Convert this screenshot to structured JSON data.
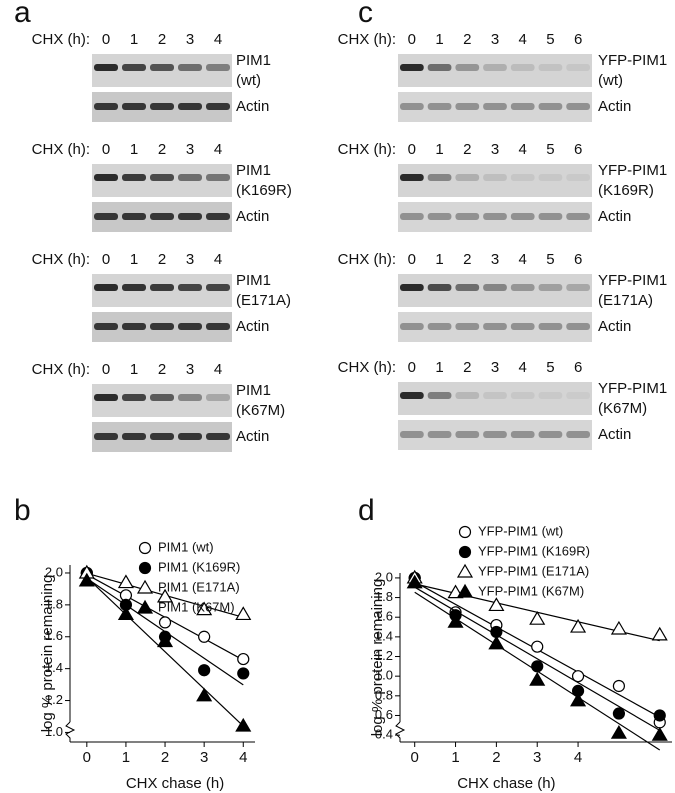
{
  "blots": [
    {
      "letter": "a",
      "blocks": [
        {
          "chx_label": "CHX (h):",
          "lanes": [
            0,
            1,
            2,
            3,
            4
          ],
          "protein": [
            "PIM1",
            "(wt)"
          ],
          "loading": "Actin"
        },
        {
          "chx_label": "CHX (h):",
          "lanes": [
            0,
            1,
            2,
            3,
            4
          ],
          "protein": [
            "PIM1",
            "(K169R)"
          ],
          "loading": "Actin"
        },
        {
          "chx_label": "CHX (h):",
          "lanes": [
            0,
            1,
            2,
            3,
            4
          ],
          "protein": [
            "PIM1",
            "(E171A)"
          ],
          "loading": "Actin"
        },
        {
          "chx_label": "CHX (h):",
          "lanes": [
            0,
            1,
            2,
            3,
            4
          ],
          "protein": [
            "PIM1",
            "(K67M)"
          ],
          "loading": "Actin"
        }
      ]
    },
    {
      "letter": "c",
      "blocks": [
        {
          "chx_label": "CHX (h):",
          "lanes": [
            0,
            1,
            2,
            3,
            4,
            5,
            6
          ],
          "protein": [
            "YFP-PIM1",
            "(wt)"
          ],
          "loading": "Actin"
        },
        {
          "chx_label": "CHX (h):",
          "lanes": [
            0,
            1,
            2,
            3,
            4,
            5,
            6
          ],
          "protein": [
            "YFP-PIM1",
            "(K169R)"
          ],
          "loading": "Actin"
        },
        {
          "chx_label": "CHX (h):",
          "lanes": [
            0,
            1,
            2,
            3,
            4,
            5,
            6
          ],
          "protein": [
            "YFP-PIM1",
            "(E171A)"
          ],
          "loading": "Actin"
        },
        {
          "chx_label": "CHX (h):",
          "lanes": [
            0,
            1,
            2,
            3,
            4,
            5,
            6
          ],
          "protein": [
            "YFP-PIM1",
            "(K67M)"
          ],
          "loading": "Actin"
        }
      ]
    }
  ],
  "chart_data": [
    {
      "type": "scatter",
      "letter": "b",
      "x_label": "CHX chase (h)",
      "y_label": "log % protein remaining",
      "x": [
        0,
        1,
        2,
        3,
        4
      ],
      "xlim": [
        -0.43,
        4.3
      ],
      "xticks": [
        0,
        1,
        2,
        3,
        4
      ],
      "ylim": [
        0.94,
        2.05
      ],
      "yticks": [
        {
          "value": 1.0,
          "label": "1.0"
        },
        1.2,
        1.4,
        1.6,
        1.8,
        {
          "value": 2.0,
          "label": "2.0"
        }
      ],
      "series": [
        {
          "name": "PIM1 (wt)",
          "marker": "open-circle",
          "color": "#000000",
          "values": [
            2.0,
            1.86,
            1.69,
            1.6,
            1.46
          ]
        },
        {
          "name": "PIM1 (K169R)",
          "marker": "filled-circle",
          "color": "#000000",
          "values": [
            2.0,
            1.8,
            1.6,
            1.39,
            1.37
          ]
        },
        {
          "name": "PIM1 (E171A)",
          "marker": "open-triangle",
          "color": "#000000",
          "values": [
            2.0,
            1.94,
            1.85,
            1.77,
            1.74
          ]
        },
        {
          "name": "PIM1 (K67M)",
          "marker": "filled-triangle",
          "color": "#000000",
          "values": [
            1.95,
            1.74,
            1.57,
            1.23,
            1.04
          ]
        }
      ]
    },
    {
      "type": "scatter",
      "letter": "d",
      "x_label": "CHX chase (h)",
      "y_label": "log % protein remaining",
      "x": [
        0,
        1,
        2,
        3,
        4,
        5,
        6
      ],
      "xlim": [
        -0.36,
        6.3
      ],
      "xticks": [
        0,
        1,
        2,
        3,
        4
      ],
      "ylim": [
        0.33,
        2.05
      ],
      "yticks": [
        0.4,
        0.6,
        0.8,
        {
          "value": 1.0,
          "label": "1.0"
        },
        1.2,
        1.4,
        1.6,
        1.8,
        {
          "value": 2.0,
          "label": "2.0"
        }
      ],
      "series": [
        {
          "name": "YFP-PIM1 (wt)",
          "marker": "open-circle",
          "color": "#000000",
          "values": [
            2.0,
            1.65,
            1.52,
            1.3,
            1.0,
            0.9,
            0.53
          ]
        },
        {
          "name": "YFP-PIM1 (K169R)",
          "marker": "filled-circle",
          "color": "#000000",
          "values": [
            2.0,
            1.62,
            1.45,
            1.1,
            0.85,
            0.62,
            0.6
          ]
        },
        {
          "name": "YFP-PIM1 (E171A)",
          "marker": "open-triangle",
          "color": "#000000",
          "values": [
            2.0,
            1.85,
            1.72,
            1.58,
            1.5,
            1.48,
            1.42
          ]
        },
        {
          "name": "YFP-PIM1 (K67M)",
          "marker": "filled-triangle",
          "color": "#000000",
          "values": [
            1.95,
            1.55,
            1.33,
            0.96,
            0.75,
            0.42,
            0.4
          ]
        }
      ]
    }
  ]
}
